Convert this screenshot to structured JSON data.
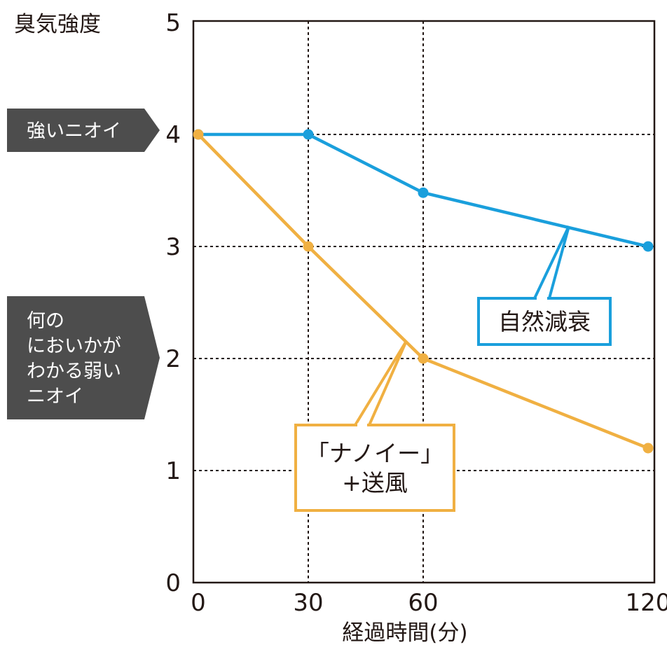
{
  "chart_data": {
    "type": "line",
    "ylabel": "臭気強度",
    "xlabel": "経過時間(分)",
    "x": [
      0,
      30,
      60,
      120
    ],
    "x_tick_labels": [
      "0",
      "30",
      "60",
      "120"
    ],
    "ylim": [
      0,
      5
    ],
    "y_ticks": [
      0,
      1,
      2,
      3,
      4,
      5
    ],
    "grid": true,
    "series": [
      {
        "name": "自然減衰",
        "color": "#1a9fdc",
        "values": [
          4.0,
          4.0,
          3.48,
          3.0
        ]
      },
      {
        "name": "「ナノイー」+送風",
        "color": "#f0b042",
        "values": [
          4.0,
          3.0,
          2.0,
          1.2
        ]
      }
    ],
    "level_tags": [
      {
        "lines": [
          "強いニオイ"
        ],
        "level": 4
      },
      {
        "lines": [
          "何の",
          "においかが",
          "わかる弱い",
          "ニオイ"
        ],
        "level": 2
      }
    ],
    "callouts": [
      {
        "lines": [
          "自然減衰"
        ],
        "series": 0
      },
      {
        "lines": [
          "「ナノイー」",
          "+送風"
        ],
        "series": 1
      }
    ]
  },
  "colors": {
    "axis": "#231815",
    "tag_bg": "#4d4d4d"
  }
}
